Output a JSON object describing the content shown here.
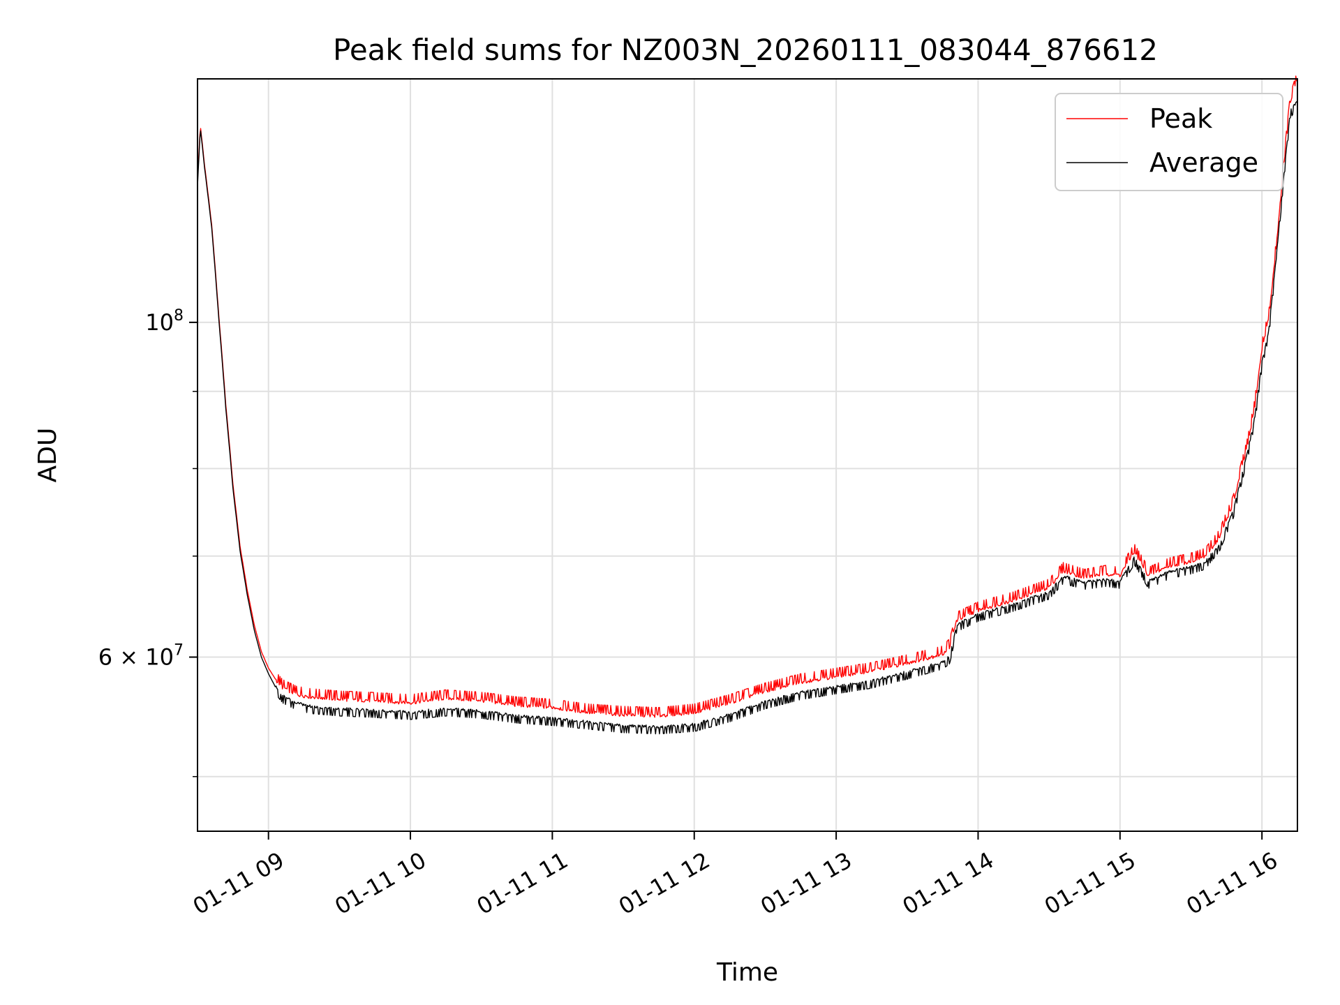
{
  "chart_data": {
    "type": "line",
    "title": "Peak field sums for NZ003N_20260111_083044_876612",
    "xlabel": "Time",
    "ylabel": "ADU",
    "yscale": "log",
    "grid": true,
    "legend_position": "top-right",
    "xlim": [
      8.5,
      16.25
    ],
    "ylim": [
      46000000,
      145000000
    ],
    "x_ticks": [
      9,
      10,
      11,
      12,
      13,
      14,
      15,
      16
    ],
    "x_tick_labels": [
      "01-11 09",
      "01-11 10",
      "01-11 11",
      "01-11 12",
      "01-11 13",
      "01-11 14",
      "01-11 15",
      "01-11 16"
    ],
    "y_major_ticks": [
      {
        "value": 100000000,
        "base": "10",
        "exp": "8",
        "mantissa": ""
      },
      {
        "value": 60000000,
        "base": "10",
        "exp": "7",
        "mantissa": "6"
      }
    ],
    "y_minor_grid": [
      50000000,
      70000000,
      80000000,
      90000000
    ],
    "series": [
      {
        "name": "Peak",
        "color": "#ff0000",
        "x": [
          8.5,
          8.52,
          8.55,
          8.6,
          8.65,
          8.7,
          8.75,
          8.8,
          8.85,
          8.9,
          8.95,
          9.0,
          9.05,
          9.1,
          9.2,
          9.3,
          9.5,
          9.7,
          10.0,
          10.25,
          10.5,
          10.75,
          11.0,
          11.25,
          11.5,
          11.75,
          12.0,
          12.25,
          12.5,
          12.75,
          13.0,
          13.25,
          13.5,
          13.75,
          13.8,
          13.85,
          14.0,
          14.25,
          14.5,
          14.6,
          14.75,
          14.9,
          15.0,
          15.1,
          15.2,
          15.35,
          15.5,
          15.6,
          15.7,
          15.8,
          15.9,
          15.95,
          16.0,
          16.05,
          16.1,
          16.15,
          16.2,
          16.25
        ],
        "values": [
          124000000,
          135000000,
          127000000,
          116000000,
          101000000,
          88000000,
          78000000,
          71000000,
          66500000,
          63000000,
          60500000,
          59000000,
          58000000,
          57300000,
          56700000,
          56500000,
          56300000,
          56200000,
          56000000,
          56400000,
          56200000,
          55800000,
          55600000,
          55200000,
          55000000,
          54900000,
          55200000,
          56000000,
          57000000,
          57800000,
          58300000,
          58800000,
          59500000,
          60300000,
          61000000,
          63500000,
          64500000,
          65500000,
          66800000,
          68500000,
          67800000,
          68200000,
          68000000,
          70500000,
          68000000,
          69000000,
          69500000,
          70000000,
          72000000,
          76000000,
          83000000,
          88000000,
          96000000,
          101000000,
          112000000,
          126000000,
          140000000,
          145000000
        ]
      },
      {
        "name": "Average",
        "color": "#000000",
        "x": [
          8.5,
          8.52,
          8.55,
          8.6,
          8.65,
          8.7,
          8.75,
          8.8,
          8.85,
          8.9,
          8.95,
          9.0,
          9.05,
          9.1,
          9.2,
          9.3,
          9.5,
          9.7,
          10.0,
          10.25,
          10.5,
          10.75,
          11.0,
          11.25,
          11.5,
          11.75,
          12.0,
          12.25,
          12.5,
          12.75,
          13.0,
          13.25,
          13.5,
          13.75,
          13.8,
          13.85,
          14.0,
          14.25,
          14.5,
          14.6,
          14.75,
          14.9,
          15.0,
          15.1,
          15.2,
          15.35,
          15.5,
          15.6,
          15.7,
          15.8,
          15.9,
          15.95,
          16.0,
          16.05,
          16.1,
          16.15,
          16.2,
          16.25
        ],
        "values": [
          123000000,
          134500000,
          126500000,
          115500000,
          100500000,
          87500000,
          77500000,
          70500000,
          66000000,
          62500000,
          60000000,
          58500000,
          57300000,
          56500000,
          55900000,
          55600000,
          55400000,
          55300000,
          55100000,
          55400000,
          55200000,
          54800000,
          54600000,
          54300000,
          54000000,
          53900000,
          54100000,
          54900000,
          56000000,
          56800000,
          57300000,
          57800000,
          58600000,
          59500000,
          60000000,
          63000000,
          64000000,
          65000000,
          66200000,
          67800000,
          67200000,
          67500000,
          67300000,
          69800000,
          67300000,
          68300000,
          68800000,
          69300000,
          71200000,
          75000000,
          82000000,
          86500000,
          94000000,
          99000000,
          110000000,
          124000000,
          138000000,
          140000000
        ]
      }
    ]
  }
}
